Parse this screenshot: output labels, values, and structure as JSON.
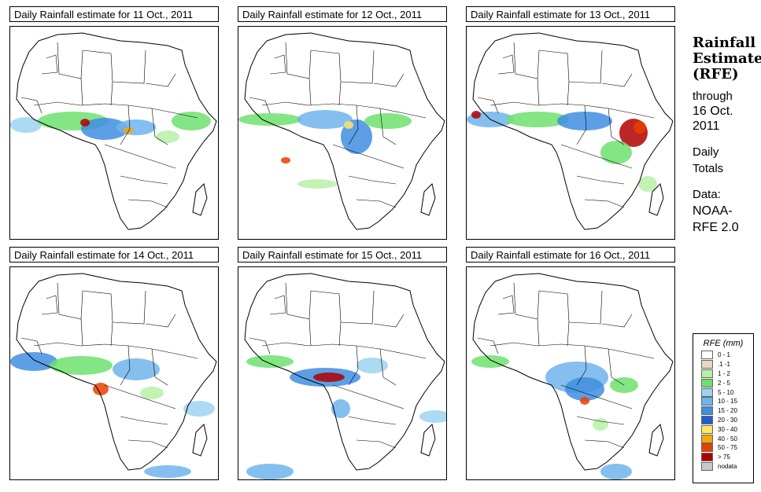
{
  "panels": [
    {
      "title": "Daily Rainfall estimate for  11 Oct., 2011"
    },
    {
      "title": "Daily Rainfall estimate for  12 Oct., 2011"
    },
    {
      "title": "Daily Rainfall estimate for  13 Oct., 2011"
    },
    {
      "title": "Daily Rainfall estimate for  14 Oct., 2011"
    },
    {
      "title": "Daily Rainfall estimate for  15 Oct., 2011"
    },
    {
      "title": "Daily Rainfall estimate for  16 Oct., 2011"
    }
  ],
  "sidebar": {
    "title_line1": "Rainfall",
    "title_line2": "Estimate",
    "title_line3": "(RFE)",
    "through_label": "through",
    "through_date1": "16 Oct.",
    "through_date2": "2011",
    "daily_line1": "Daily",
    "daily_line2": "Totals",
    "data_label": "Data:",
    "data_source1": "NOAA-",
    "data_source2": "RFE 2.0"
  },
  "legend": {
    "title": "RFE (mm)",
    "items": [
      {
        "label": "0 - 1",
        "color": "#ffffff"
      },
      {
        "label": ".1 -1",
        "color": "#e6d7bf"
      },
      {
        "label": "1 - 2",
        "color": "#b8f0a8"
      },
      {
        "label": "2 - 5",
        "color": "#6ee06e"
      },
      {
        "label": "5 - 10",
        "color": "#9ed3f0"
      },
      {
        "label": "10 - 15",
        "color": "#6fb4ec"
      },
      {
        "label": "15 - 20",
        "color": "#3f8ee0"
      },
      {
        "label": "20 - 30",
        "color": "#1f5fd0"
      },
      {
        "label": "30 - 40",
        "color": "#ffe866"
      },
      {
        "label": "40 - 50",
        "color": "#f7a800"
      },
      {
        "label": "50 - 75",
        "color": "#e84000"
      },
      {
        "label": "> 75",
        "color": "#b00000"
      },
      {
        "label": "nodata",
        "color": "#c8c8c8"
      }
    ]
  }
}
